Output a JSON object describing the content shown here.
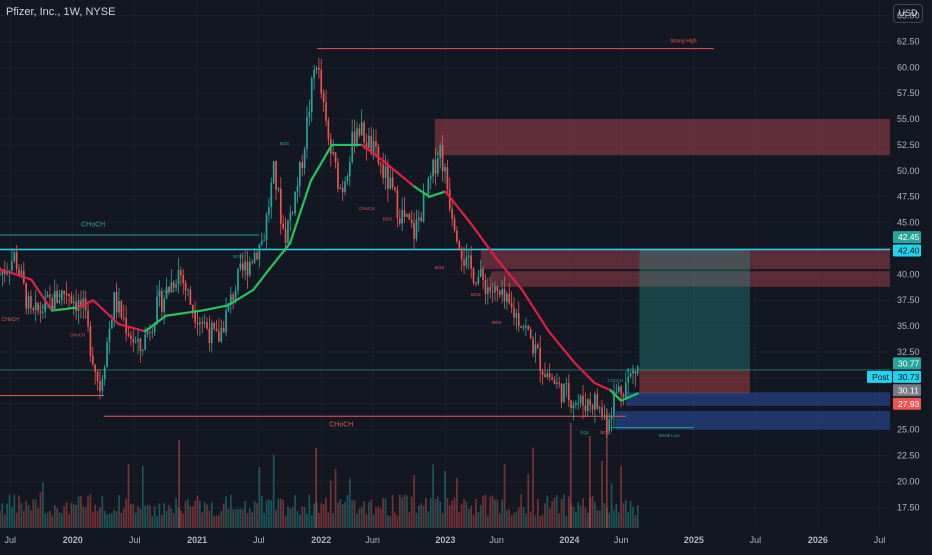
{
  "header": {
    "title": "Pfizer, Inc., 1W, NYSE",
    "currency": "USD"
  },
  "colors": {
    "background": "#131722",
    "bull": "#26a69a",
    "bear": "#ef5350",
    "trail_up": "#22c55e",
    "trail_down": "#e11d48",
    "cyan": "#22d3ee",
    "grid": "#1e222d"
  },
  "chart_data": {
    "type": "candlestick",
    "x_range": [
      "2019-06-01",
      "2026-08-01"
    ],
    "ylim": [
      15.5,
      66.5
    ],
    "y_ticks": [
      "65.00",
      "62.50",
      "60.00",
      "57.50",
      "55.00",
      "52.50",
      "50.00",
      "47.50",
      "45.00",
      "42.50",
      "40.00",
      "37.50",
      "35.00",
      "32.50",
      "30.00",
      "27.50",
      "25.00",
      "22.50",
      "20.00",
      "17.50"
    ],
    "x_ticks": [
      {
        "label": "Jul",
        "date": "2019-07-01"
      },
      {
        "label": "2020",
        "date": "2020-01-01",
        "bold": true
      },
      {
        "label": "Jul",
        "date": "2020-07-01"
      },
      {
        "label": "2021",
        "date": "2021-01-01",
        "bold": true
      },
      {
        "label": "Jul",
        "date": "2021-07-01"
      },
      {
        "label": "2022",
        "date": "2022-01-01",
        "bold": true
      },
      {
        "label": "Jun",
        "date": "2022-06-01"
      },
      {
        "label": "2023",
        "date": "2023-01-01",
        "bold": true
      },
      {
        "label": "Jun",
        "date": "2023-06-01"
      },
      {
        "label": "2024",
        "date": "2024-01-01",
        "bold": true
      },
      {
        "label": "Jun",
        "date": "2024-06-01"
      },
      {
        "label": "2025",
        "date": "2025-01-01",
        "bold": true
      },
      {
        "label": "Jul",
        "date": "2025-07-01"
      },
      {
        "label": "2026",
        "date": "2026-01-01",
        "bold": true
      },
      {
        "label": "Jul",
        "date": "2026-07-01"
      }
    ],
    "price_path": [
      [
        "2019-06-01",
        40.0
      ],
      [
        "2019-07-15",
        41.8
      ],
      [
        "2019-09-01",
        35.8
      ],
      [
        "2019-10-15",
        37.0
      ],
      [
        "2019-12-15",
        38.5
      ],
      [
        "2020-02-01",
        36.5
      ],
      [
        "2020-03-20",
        29.0
      ],
      [
        "2020-05-01",
        37.5
      ],
      [
        "2020-07-15",
        32.5
      ],
      [
        "2020-09-01",
        36.5
      ],
      [
        "2020-11-09",
        40.5
      ],
      [
        "2020-12-15",
        37.0
      ],
      [
        "2021-03-01",
        33.5
      ],
      [
        "2021-05-01",
        39.5
      ],
      [
        "2021-07-15",
        43.5
      ],
      [
        "2021-08-15",
        50.0
      ],
      [
        "2021-09-15",
        43.5
      ],
      [
        "2021-11-01",
        50.0
      ],
      [
        "2021-12-17",
        61.0
      ],
      [
        "2022-01-20",
        53.0
      ],
      [
        "2022-03-01",
        48.0
      ],
      [
        "2022-04-15",
        54.5
      ],
      [
        "2022-06-01",
        52.0
      ],
      [
        "2022-07-15",
        49.0
      ],
      [
        "2022-08-20",
        46.0
      ],
      [
        "2022-10-01",
        44.0
      ],
      [
        "2022-11-15",
        48.5
      ],
      [
        "2022-12-15",
        52.5
      ],
      [
        "2023-01-15",
        47.0
      ],
      [
        "2023-03-01",
        41.0
      ],
      [
        "2023-04-15",
        39.5
      ],
      [
        "2023-06-15",
        37.5
      ],
      [
        "2023-08-15",
        35.5
      ],
      [
        "2023-10-15",
        31.0
      ],
      [
        "2023-12-01",
        29.0
      ],
      [
        "2024-02-01",
        27.5
      ],
      [
        "2024-03-15",
        27.8
      ],
      [
        "2024-04-20",
        25.8
      ],
      [
        "2024-05-15",
        28.5
      ],
      [
        "2024-06-15",
        29.5
      ],
      [
        "2024-07-20",
        31.0
      ]
    ],
    "trail_path": [
      [
        "2019-06-01",
        40.5,
        "bear"
      ],
      [
        "2019-09-01",
        39.5,
        "bear"
      ],
      [
        "2019-11-01",
        36.5,
        "bear"
      ],
      [
        "2020-01-15",
        36.8,
        "bull"
      ],
      [
        "2020-03-01",
        37.5,
        "bear"
      ],
      [
        "2020-05-15",
        35.2,
        "bear"
      ],
      [
        "2020-08-01",
        34.5,
        "bear"
      ],
      [
        "2020-10-01",
        36.0,
        "bull"
      ],
      [
        "2021-01-15",
        36.5,
        "bull"
      ],
      [
        "2021-04-01",
        37.0,
        "bull"
      ],
      [
        "2021-06-15",
        38.5,
        "bull"
      ],
      [
        "2021-08-01",
        40.5,
        "bull"
      ],
      [
        "2021-10-01",
        43.0,
        "bull"
      ],
      [
        "2021-12-01",
        49.0,
        "bull"
      ],
      [
        "2022-02-01",
        52.5,
        "bull"
      ],
      [
        "2022-05-01",
        52.5,
        "bull"
      ],
      [
        "2022-07-01",
        51.0,
        "bear"
      ],
      [
        "2022-10-01",
        48.5,
        "bear"
      ],
      [
        "2022-11-15",
        47.5,
        "bull"
      ],
      [
        "2023-01-01",
        48.0,
        "bull"
      ],
      [
        "2023-03-15",
        45.0,
        "bear"
      ],
      [
        "2023-06-01",
        41.5,
        "bear"
      ],
      [
        "2023-08-15",
        38.5,
        "bear"
      ],
      [
        "2023-11-01",
        34.5,
        "bear"
      ],
      [
        "2024-01-15",
        31.5,
        "bear"
      ],
      [
        "2024-03-15",
        29.5,
        "bear"
      ],
      [
        "2024-05-01",
        28.8,
        "bear"
      ],
      [
        "2024-06-01",
        27.8,
        "bull"
      ],
      [
        "2024-07-20",
        28.5,
        "bull"
      ]
    ],
    "zones": [
      {
        "name": "supply-zone-top",
        "x0": "2022-12-01",
        "x1": "2026-08-01",
        "y0": 51.5,
        "y1": 55.0,
        "color": "#a0424b",
        "opacity": 0.55
      },
      {
        "name": "supply-zone-mid",
        "x0": "2023-04-15",
        "x1": "2026-08-01",
        "y0": 40.5,
        "y1": 42.5,
        "color": "#a0424b",
        "opacity": 0.5
      },
      {
        "name": "supply-zone-low",
        "x0": "2023-05-15",
        "x1": "2026-08-01",
        "y0": 38.8,
        "y1": 40.3,
        "color": "#a0424b",
        "opacity": 0.5
      },
      {
        "name": "demand-zone-1",
        "x0": "2024-06-15",
        "x1": "2026-08-01",
        "y0": 27.3,
        "y1": 28.6,
        "color": "#2a4a9a",
        "opacity": 0.6
      },
      {
        "name": "demand-zone-2",
        "x0": "2024-05-15",
        "x1": "2026-08-01",
        "y0": 25.0,
        "y1": 26.8,
        "color": "#2a4a9a",
        "opacity": 0.6
      },
      {
        "name": "target-zone",
        "x0": "2024-07-25",
        "x1": "2025-06-15",
        "y0": 30.8,
        "y1": 42.4,
        "color": "#26a69a",
        "opacity": 0.3
      },
      {
        "name": "stop-zone",
        "x0": "2024-07-25",
        "x1": "2025-06-15",
        "y0": 28.5,
        "y1": 30.8,
        "color": "#ef5350",
        "opacity": 0.35
      }
    ],
    "levels": [
      {
        "name": "strong-high-line",
        "x0": "2021-12-20",
        "x1": "2025-03-01",
        "y": 61.8,
        "color": "#ef5350"
      },
      {
        "name": "choch-top-line",
        "x0": "2019-06-01",
        "x1": "2021-07-01",
        "y": 43.8,
        "color": "#26a69a"
      },
      {
        "name": "cyan-level-line",
        "x0": "2019-06-01",
        "x1": "2026-08-01",
        "y": 42.4,
        "color": "#22d3ee",
        "width": 1.6
      },
      {
        "name": "choch-bottom-line",
        "x0": "2020-04-01",
        "x1": "2024-06-15",
        "y": 26.3,
        "color": "#ef5350"
      },
      {
        "name": "red-base-line",
        "x0": "2019-06-01",
        "x1": "2020-04-01",
        "y": 28.3,
        "color": "#ef5350"
      },
      {
        "name": "current-price-line",
        "x0": "2019-06-01",
        "x1": "2026-08-01",
        "y": 30.77,
        "color": "#26a69a",
        "opacity": 0.6
      },
      {
        "name": "weak-low-line",
        "x0": "2024-05-01",
        "x1": "2025-01-01",
        "y": 25.2,
        "color": "#26a69a"
      }
    ],
    "annotations": [
      {
        "text": "Strong High",
        "date": "2024-12-01",
        "y": 62.4,
        "color": "#ef5350",
        "size": 5
      },
      {
        "text": "CHoCH",
        "date": "2020-03-01",
        "y": 44.6,
        "color": "#26a69a",
        "size": 7
      },
      {
        "text": "CHoCH",
        "date": "2022-03-01",
        "y": 25.3,
        "color": "#ef5350",
        "size": 7
      },
      {
        "text": "Weak Low",
        "date": "2024-10-20",
        "y": 24.3,
        "color": "#26a69a",
        "size": 4.5
      },
      {
        "text": "CHoCH",
        "date": "2019-07-01",
        "y": 35.5,
        "color": "#ef5350",
        "size": 5
      },
      {
        "text": "BOS",
        "date": "2019-11-15",
        "y": 37.8,
        "color": "#26a69a",
        "size": 4.5
      },
      {
        "text": "CHoCH",
        "date": "2019-10-15",
        "y": 36.7,
        "color": "#26a69a",
        "size": 4.5
      },
      {
        "text": "CHoCH",
        "date": "2020-01-15",
        "y": 34.0,
        "color": "#ef5350",
        "size": 4.5
      },
      {
        "text": "CHoCH",
        "date": "2020-10-01",
        "y": 38.2,
        "color": "#26a69a",
        "size": 4.5
      },
      {
        "text": "BOS",
        "date": "2021-05-01",
        "y": 41.6,
        "color": "#26a69a",
        "size": 4.5
      },
      {
        "text": "BOS",
        "date": "2021-09-15",
        "y": 52.5,
        "color": "#26a69a",
        "size": 4.5
      },
      {
        "text": "CHoCH",
        "date": "2022-05-15",
        "y": 46.2,
        "color": "#ef5350",
        "size": 4.5
      },
      {
        "text": "BOS",
        "date": "2022-07-15",
        "y": 45.2,
        "color": "#ef5350",
        "size": 4.5
      },
      {
        "text": "BOS",
        "date": "2022-12-15",
        "y": 40.5,
        "color": "#ef5350",
        "size": 4.5
      },
      {
        "text": "BOS",
        "date": "2023-04-01",
        "y": 37.9,
        "color": "#ef5350",
        "size": 4.5
      },
      {
        "text": "BOS",
        "date": "2023-06-01",
        "y": 35.2,
        "color": "#ef5350",
        "size": 4.5
      },
      {
        "text": "CHoCH",
        "date": "2024-05-15",
        "y": 29.6,
        "color": "#26a69a",
        "size": 4.5
      },
      {
        "text": "BOS",
        "date": "2024-07-01",
        "y": 30.6,
        "color": "#26a69a",
        "size": 4.5
      },
      {
        "text": "EQL",
        "date": "2024-02-15",
        "y": 24.6,
        "color": "#26a69a",
        "size": 4.5
      },
      {
        "text": "BOS",
        "date": "2024-04-15",
        "y": 24.6,
        "color": "#ef5350",
        "size": 4.5
      }
    ],
    "price_labels": [
      {
        "text": "42.45",
        "y": 43.6,
        "bg": "#26a69a",
        "fg": "#ffffff"
      },
      {
        "text": "42.40",
        "y": 42.3,
        "bg": "#22d3ee",
        "fg": "#0b1220"
      },
      {
        "text": "30.77",
        "y": 31.4,
        "bg": "#26a69a",
        "fg": "#ffffff"
      },
      {
        "text": "30.73",
        "y": 30.1,
        "bg": "#22d3ee",
        "fg": "#0b1220",
        "tag": "Post"
      },
      {
        "text": "30.11",
        "y": 28.8,
        "bg": "#787b86",
        "fg": "#ffffff"
      },
      {
        "text": "27.93",
        "y": 27.5,
        "bg": "#ef5350",
        "fg": "#ffffff"
      }
    ]
  }
}
